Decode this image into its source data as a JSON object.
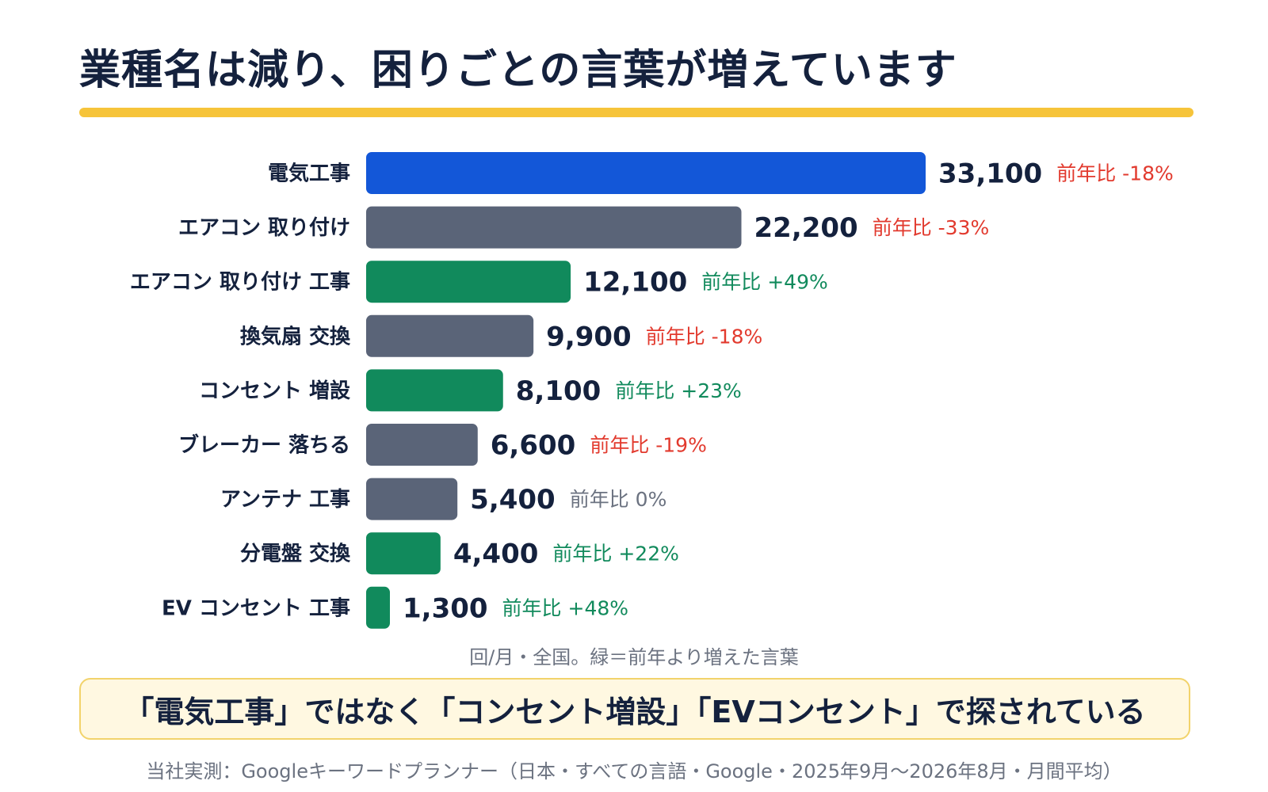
{
  "title": "業種名は減り、困りごとの言葉が増えています",
  "colors": {
    "accent_rule": "#f6c43a",
    "increase": "#118a5c",
    "decrease_bar": "#5a6478",
    "highlight": "#1357d8",
    "increase_text": "#118a5c",
    "decrease_text": "#e23a2e",
    "neutral_text": "#6b7280"
  },
  "chart_data": {
    "type": "bar",
    "orientation": "horizontal",
    "categories": [
      "電気工事",
      "エアコン 取り付け",
      "エアコン 取り付け 工事",
      "換気扇 交換",
      "コンセント 増設",
      "ブレーカー 落ちる",
      "アンテナ 工事",
      "分電盤 交換",
      "EV コンセント 工事"
    ],
    "values": [
      33100,
      22200,
      12100,
      9900,
      8100,
      6600,
      5400,
      4400,
      1300
    ],
    "value_labels": [
      "33,100",
      "22,200",
      "12,100",
      "9,900",
      "8,100",
      "6,600",
      "5,400",
      "4,400",
      "1,300"
    ],
    "yoy_labels": [
      "前年比 -18%",
      "前年比 -33%",
      "前年比 +49%",
      "前年比 -18%",
      "前年比 +23%",
      "前年比 -19%",
      "前年比 0%",
      "前年比 +22%",
      "前年比 +48%"
    ],
    "yoy_percent": [
      -18,
      -33,
      49,
      -18,
      23,
      -19,
      0,
      22,
      48
    ],
    "xlim": [
      0,
      33100
    ],
    "grid": false
  },
  "note": "回/月・全国。緑＝前年より増えた言葉",
  "callout": "「電気工事」ではなく「コンセント増設」「EVコンセント」で探されている",
  "source": "当社実測：Googleキーワードプランナー（日本・すべての言語・Google・2025年9月〜2026年8月・月間平均）"
}
